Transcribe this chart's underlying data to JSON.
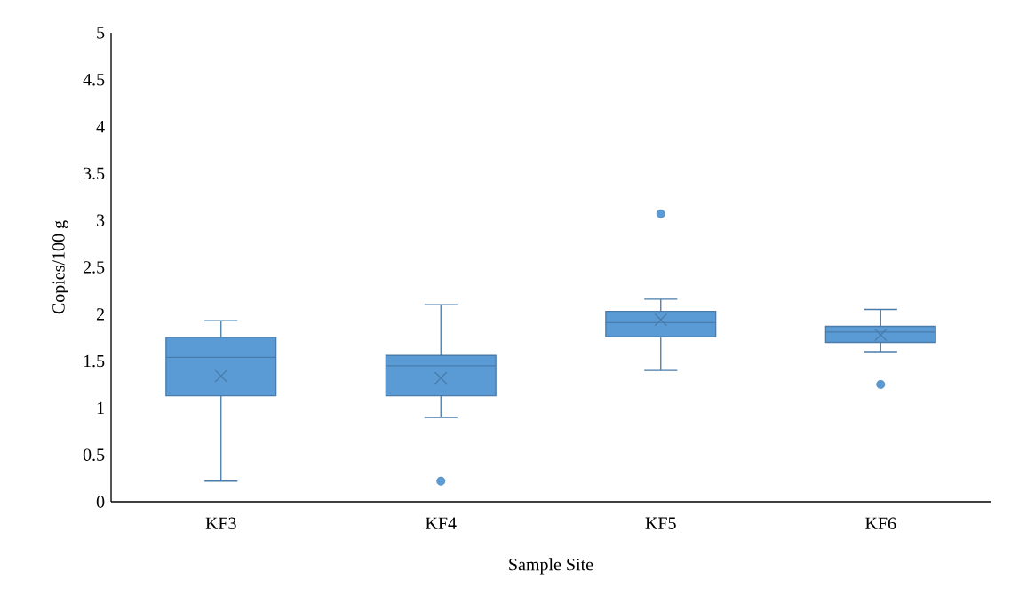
{
  "chart_data": {
    "type": "box",
    "xlabel": "Sample Site",
    "ylabel": "Copies/100 g",
    "categories": [
      "KF3",
      "KF4",
      "KF5",
      "KF6"
    ],
    "color": "#5b9bd5",
    "boxes": [
      {
        "low": 0.22,
        "q1": 1.13,
        "median": 1.54,
        "q3": 1.75,
        "high": 1.93,
        "mean": 1.34
      },
      {
        "low": 0.9,
        "q1": 1.13,
        "median": 1.45,
        "q3": 1.56,
        "high": 2.1,
        "mean": 1.32,
        "outliers": [
          0.22
        ]
      },
      {
        "low": 1.4,
        "q1": 1.76,
        "median": 1.91,
        "q3": 2.03,
        "high": 2.16,
        "mean": 1.94,
        "outliers": [
          3.07
        ]
      },
      {
        "low": 1.6,
        "q1": 1.7,
        "median": 1.81,
        "q3": 1.87,
        "high": 2.05,
        "mean": 1.78,
        "outliers": [
          1.25
        ]
      }
    ],
    "ylim": [
      0,
      5
    ],
    "yticks": [
      0,
      0.5,
      1,
      1.5,
      2,
      2.5,
      3,
      3.5,
      4,
      4.5,
      5
    ]
  }
}
